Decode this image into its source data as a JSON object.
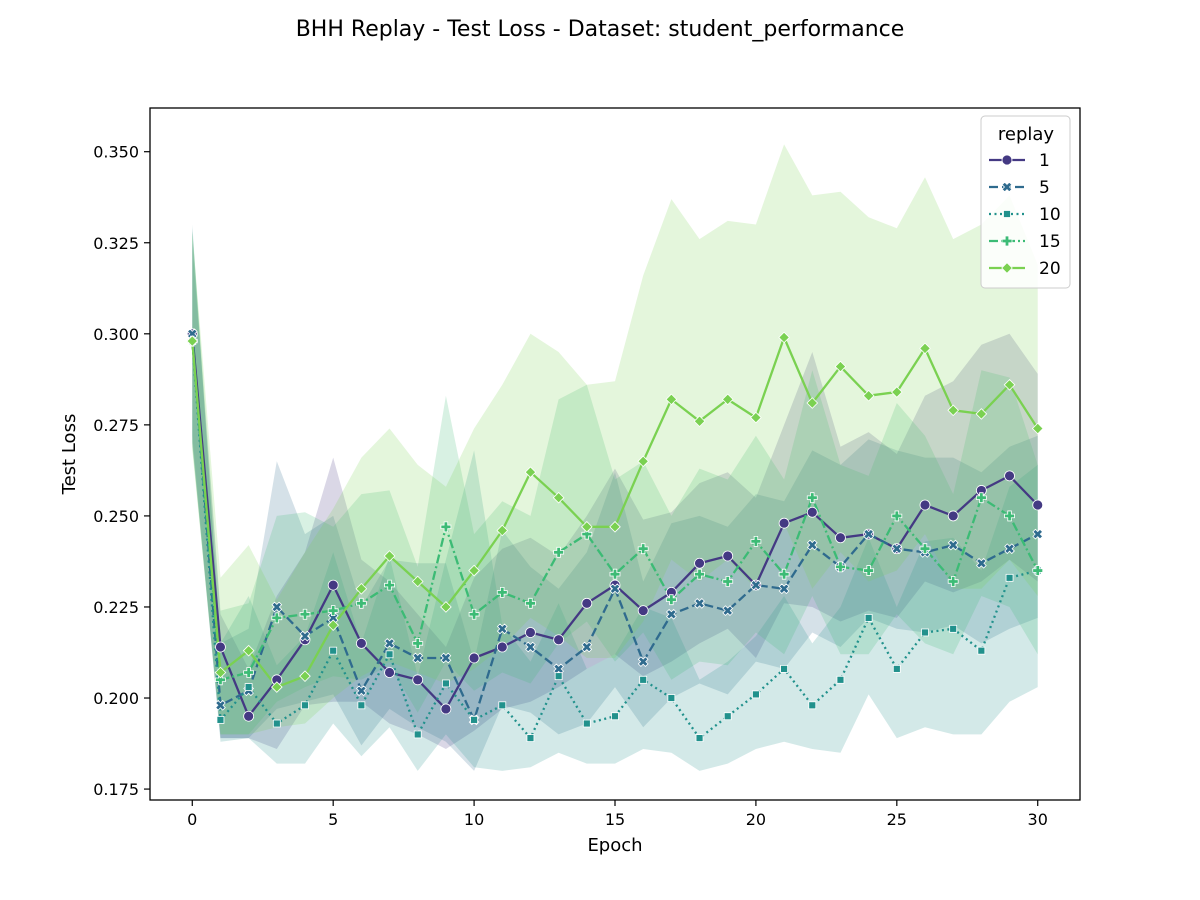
{
  "chart_data": {
    "type": "line",
    "title": "BHH Replay - Test Loss - Dataset: student_performance",
    "xlabel": "Epoch",
    "ylabel": "Test Loss",
    "xlim": [
      -1.5,
      31.5
    ],
    "ylim": [
      0.172,
      0.362
    ],
    "xticks": [
      0,
      5,
      10,
      15,
      20,
      25,
      30
    ],
    "yticks": [
      0.175,
      0.2,
      0.225,
      0.25,
      0.275,
      0.3,
      0.325,
      0.35
    ],
    "ytick_labels": [
      "0.175",
      "0.200",
      "0.225",
      "0.250",
      "0.275",
      "0.300",
      "0.325",
      "0.350"
    ],
    "legend": {
      "title": "replay",
      "position": "top-right"
    },
    "grid": false,
    "x": [
      0,
      1,
      2,
      3,
      4,
      5,
      6,
      7,
      8,
      9,
      10,
      11,
      12,
      13,
      14,
      15,
      16,
      17,
      18,
      19,
      20,
      21,
      22,
      23,
      24,
      25,
      26,
      27,
      28,
      29,
      30
    ],
    "series": [
      {
        "name": "1",
        "color": "#443983",
        "marker": "circle",
        "dash": "solid",
        "values": [
          0.3,
          0.214,
          0.195,
          0.205,
          0.216,
          0.231,
          0.215,
          0.207,
          0.205,
          0.197,
          0.211,
          0.214,
          0.218,
          0.216,
          0.226,
          0.231,
          0.224,
          0.229,
          0.237,
          0.239,
          0.231,
          0.248,
          0.251,
          0.244,
          0.245,
          0.241,
          0.253,
          0.25,
          0.257,
          0.261,
          0.253
        ],
        "lower": [
          0.27,
          0.189,
          0.189,
          0.186,
          0.198,
          0.199,
          0.199,
          0.193,
          0.19,
          0.186,
          0.191,
          0.197,
          0.199,
          0.203,
          0.208,
          0.212,
          0.206,
          0.21,
          0.215,
          0.219,
          0.211,
          0.226,
          0.225,
          0.221,
          0.224,
          0.222,
          0.232,
          0.229,
          0.232,
          0.238,
          0.232
        ],
        "upper": [
          0.325,
          0.223,
          0.208,
          0.228,
          0.24,
          0.266,
          0.238,
          0.232,
          0.223,
          0.214,
          0.233,
          0.241,
          0.244,
          0.239,
          0.25,
          0.263,
          0.249,
          0.251,
          0.259,
          0.262,
          0.255,
          0.275,
          0.295,
          0.269,
          0.273,
          0.267,
          0.283,
          0.287,
          0.297,
          0.3,
          0.289
        ]
      },
      {
        "name": "5",
        "color": "#2f6b8e",
        "marker": "x",
        "dash": "dashed",
        "values": [
          0.3,
          0.198,
          0.202,
          0.225,
          0.217,
          0.222,
          0.202,
          0.215,
          0.211,
          0.211,
          0.194,
          0.219,
          0.214,
          0.208,
          0.214,
          0.23,
          0.21,
          0.223,
          0.226,
          0.224,
          0.231,
          0.23,
          0.242,
          0.236,
          0.245,
          0.241,
          0.24,
          0.242,
          0.237,
          0.241,
          0.245
        ],
        "lower": [
          0.272,
          0.189,
          0.189,
          0.197,
          0.199,
          0.201,
          0.187,
          0.197,
          0.192,
          0.188,
          0.18,
          0.198,
          0.196,
          0.19,
          0.193,
          0.203,
          0.192,
          0.2,
          0.204,
          0.201,
          0.21,
          0.208,
          0.218,
          0.214,
          0.222,
          0.219,
          0.218,
          0.22,
          0.215,
          0.219,
          0.222
        ],
        "upper": [
          0.329,
          0.215,
          0.219,
          0.265,
          0.245,
          0.25,
          0.225,
          0.238,
          0.237,
          0.237,
          0.21,
          0.246,
          0.236,
          0.23,
          0.24,
          0.262,
          0.232,
          0.248,
          0.25,
          0.247,
          0.256,
          0.254,
          0.268,
          0.264,
          0.271,
          0.268,
          0.266,
          0.266,
          0.262,
          0.269,
          0.272
        ]
      },
      {
        "name": "10",
        "color": "#21918c",
        "marker": "square",
        "dash": "dotted",
        "values": [
          0.298,
          0.194,
          0.203,
          0.193,
          0.198,
          0.213,
          0.198,
          0.212,
          0.19,
          0.204,
          0.194,
          0.198,
          0.189,
          0.206,
          0.193,
          0.195,
          0.205,
          0.2,
          0.189,
          0.195,
          0.201,
          0.208,
          0.198,
          0.205,
          0.222,
          0.208,
          0.218,
          0.219,
          0.213,
          0.233,
          0.235
        ],
        "lower": [
          0.27,
          0.188,
          0.189,
          0.182,
          0.182,
          0.193,
          0.184,
          0.192,
          0.18,
          0.19,
          0.181,
          0.18,
          0.181,
          0.185,
          0.182,
          0.182,
          0.186,
          0.185,
          0.18,
          0.182,
          0.186,
          0.188,
          0.186,
          0.185,
          0.201,
          0.189,
          0.192,
          0.19,
          0.19,
          0.199,
          0.203
        ],
        "upper": [
          0.33,
          0.215,
          0.228,
          0.209,
          0.217,
          0.24,
          0.215,
          0.239,
          0.206,
          0.238,
          0.268,
          0.22,
          0.21,
          0.226,
          0.208,
          0.212,
          0.225,
          0.222,
          0.205,
          0.21,
          0.217,
          0.228,
          0.215,
          0.225,
          0.244,
          0.225,
          0.243,
          0.244,
          0.235,
          0.258,
          0.264
        ]
      },
      {
        "name": "15",
        "color": "#3cbb75",
        "marker": "plus",
        "dash": "dashdot",
        "values": [
          0.298,
          0.205,
          0.207,
          0.222,
          0.223,
          0.224,
          0.226,
          0.231,
          0.215,
          0.247,
          0.223,
          0.229,
          0.226,
          0.24,
          0.245,
          0.234,
          0.241,
          0.227,
          0.234,
          0.232,
          0.243,
          0.234,
          0.255,
          0.236,
          0.235,
          0.25,
          0.241,
          0.232,
          0.255,
          0.25,
          0.235
        ],
        "lower": [
          0.269,
          0.19,
          0.19,
          0.199,
          0.203,
          0.206,
          0.205,
          0.209,
          0.196,
          0.21,
          0.202,
          0.207,
          0.204,
          0.215,
          0.221,
          0.21,
          0.218,
          0.205,
          0.21,
          0.209,
          0.218,
          0.212,
          0.228,
          0.212,
          0.212,
          0.223,
          0.215,
          0.212,
          0.228,
          0.225,
          0.212
        ],
        "upper": [
          0.328,
          0.224,
          0.226,
          0.25,
          0.251,
          0.247,
          0.256,
          0.257,
          0.236,
          0.283,
          0.245,
          0.254,
          0.25,
          0.282,
          0.286,
          0.26,
          0.265,
          0.25,
          0.263,
          0.26,
          0.272,
          0.26,
          0.29,
          0.264,
          0.261,
          0.281,
          0.272,
          0.256,
          0.29,
          0.288,
          0.264
        ]
      },
      {
        "name": "20",
        "color": "#7ad151",
        "marker": "diamond",
        "dash": "solid",
        "values": [
          0.298,
          0.207,
          0.213,
          0.203,
          0.206,
          0.22,
          0.23,
          0.239,
          0.232,
          0.225,
          0.235,
          0.246,
          0.262,
          0.255,
          0.247,
          0.247,
          0.265,
          0.282,
          0.276,
          0.282,
          0.277,
          0.299,
          0.281,
          0.291,
          0.283,
          0.284,
          0.296,
          0.279,
          0.278,
          0.286,
          0.274
        ],
        "lower": [
          0.268,
          0.19,
          0.19,
          0.192,
          0.193,
          0.2,
          0.206,
          0.21,
          0.207,
          0.204,
          0.208,
          0.214,
          0.222,
          0.217,
          0.211,
          0.211,
          0.221,
          0.238,
          0.232,
          0.238,
          0.23,
          0.248,
          0.23,
          0.24,
          0.232,
          0.235,
          0.245,
          0.23,
          0.23,
          0.238,
          0.228
        ],
        "upper": [
          0.328,
          0.233,
          0.242,
          0.227,
          0.24,
          0.252,
          0.266,
          0.274,
          0.264,
          0.258,
          0.274,
          0.286,
          0.3,
          0.295,
          0.286,
          0.287,
          0.316,
          0.337,
          0.326,
          0.331,
          0.33,
          0.352,
          0.338,
          0.339,
          0.332,
          0.329,
          0.343,
          0.326,
          0.33,
          0.338,
          0.319
        ]
      }
    ]
  }
}
